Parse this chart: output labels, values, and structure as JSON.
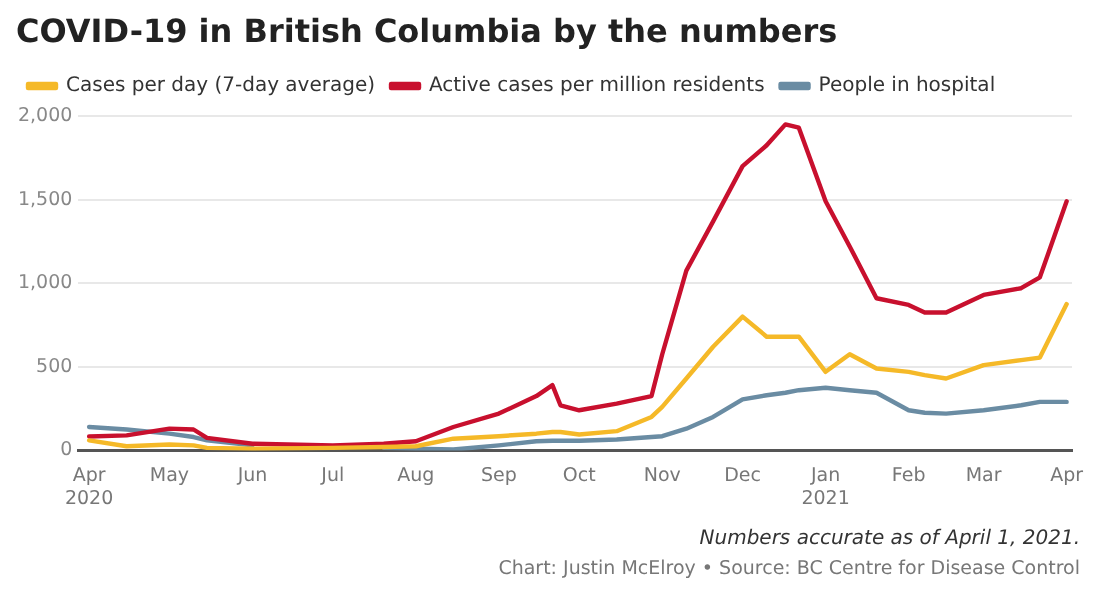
{
  "chart_data": {
    "type": "line",
    "title": "COVID-19 in British Columbia by the numbers",
    "annotations": [
      "Numbers accurate as of April 1, 2021.",
      "Chart: Justin McElroy • Source: BC Centre for Disease Control"
    ],
    "x": [
      "2020-04-01",
      "2020-04-15",
      "2020-05-01",
      "2020-05-10",
      "2020-05-15",
      "2020-06-01",
      "2020-07-01",
      "2020-07-20",
      "2020-08-01",
      "2020-08-15",
      "2020-09-01",
      "2020-09-15",
      "2020-09-21",
      "2020-09-24",
      "2020-10-01",
      "2020-10-15",
      "2020-10-28",
      "2020-11-01",
      "2020-11-10",
      "2020-11-20",
      "2020-12-01",
      "2020-12-10",
      "2020-12-17",
      "2020-12-22",
      "2021-01-01",
      "2021-01-10",
      "2021-01-20",
      "2021-02-01",
      "2021-02-07",
      "2021-02-15",
      "2021-03-01",
      "2021-03-15",
      "2021-03-22",
      "2021-04-01"
    ],
    "series": [
      {
        "name": "Cases per day (7-day average)",
        "color": "#f5b928",
        "values": [
          60,
          25,
          35,
          30,
          15,
          10,
          15,
          20,
          25,
          70,
          85,
          100,
          110,
          110,
          95,
          115,
          200,
          260,
          430,
          620,
          800,
          680,
          680,
          680,
          470,
          575,
          490,
          470,
          450,
          430,
          510,
          540,
          555,
          875
        ]
      },
      {
        "name": "Active cases per million residents",
        "color": "#c8102e",
        "values": [
          83,
          90,
          130,
          125,
          75,
          40,
          30,
          40,
          55,
          140,
          220,
          325,
          390,
          270,
          240,
          280,
          325,
          575,
          1075,
          1370,
          1700,
          1825,
          1950,
          1930,
          1490,
          1220,
          910,
          870,
          825,
          825,
          930,
          970,
          1035,
          1490
        ]
      },
      {
        "name": "People in hospital",
        "color": "#6a8ca3",
        "values": [
          140,
          125,
          100,
          80,
          60,
          30,
          null,
          15,
          10,
          5,
          30,
          55,
          58,
          58,
          58,
          65,
          80,
          85,
          130,
          200,
          305,
          330,
          345,
          360,
          375,
          360,
          345,
          240,
          225,
          220,
          240,
          270,
          290,
          290
        ]
      }
    ],
    "xlim": [
      "2020-03-28",
      "2021-04-03"
    ],
    "xticks": [
      {
        "value": "2020-04-01",
        "label": "Apr\n2020"
      },
      {
        "value": "2020-05-01",
        "label": "May"
      },
      {
        "value": "2020-06-01",
        "label": "Jun"
      },
      {
        "value": "2020-07-01",
        "label": "Jul"
      },
      {
        "value": "2020-08-01",
        "label": "Aug"
      },
      {
        "value": "2020-09-01",
        "label": "Sep"
      },
      {
        "value": "2020-10-01",
        "label": "Oct"
      },
      {
        "value": "2020-11-01",
        "label": "Nov"
      },
      {
        "value": "2020-12-01",
        "label": "Dec"
      },
      {
        "value": "2021-01-01",
        "label": "Jan\n2021"
      },
      {
        "value": "2021-02-01",
        "label": "Feb"
      },
      {
        "value": "2021-03-01",
        "label": "Mar"
      },
      {
        "value": "2021-04-01",
        "label": "Apr"
      }
    ],
    "ylim": [
      0,
      2000
    ],
    "yticks": [
      {
        "value": 0,
        "label": "0"
      },
      {
        "value": 500,
        "label": "500"
      },
      {
        "value": 1000,
        "label": "1,000"
      },
      {
        "value": 1500,
        "label": "1,500"
      },
      {
        "value": 2000,
        "label": "2,000"
      }
    ],
    "grid": "y",
    "legend": "top left",
    "marker": "none",
    "line_style": "solid"
  }
}
